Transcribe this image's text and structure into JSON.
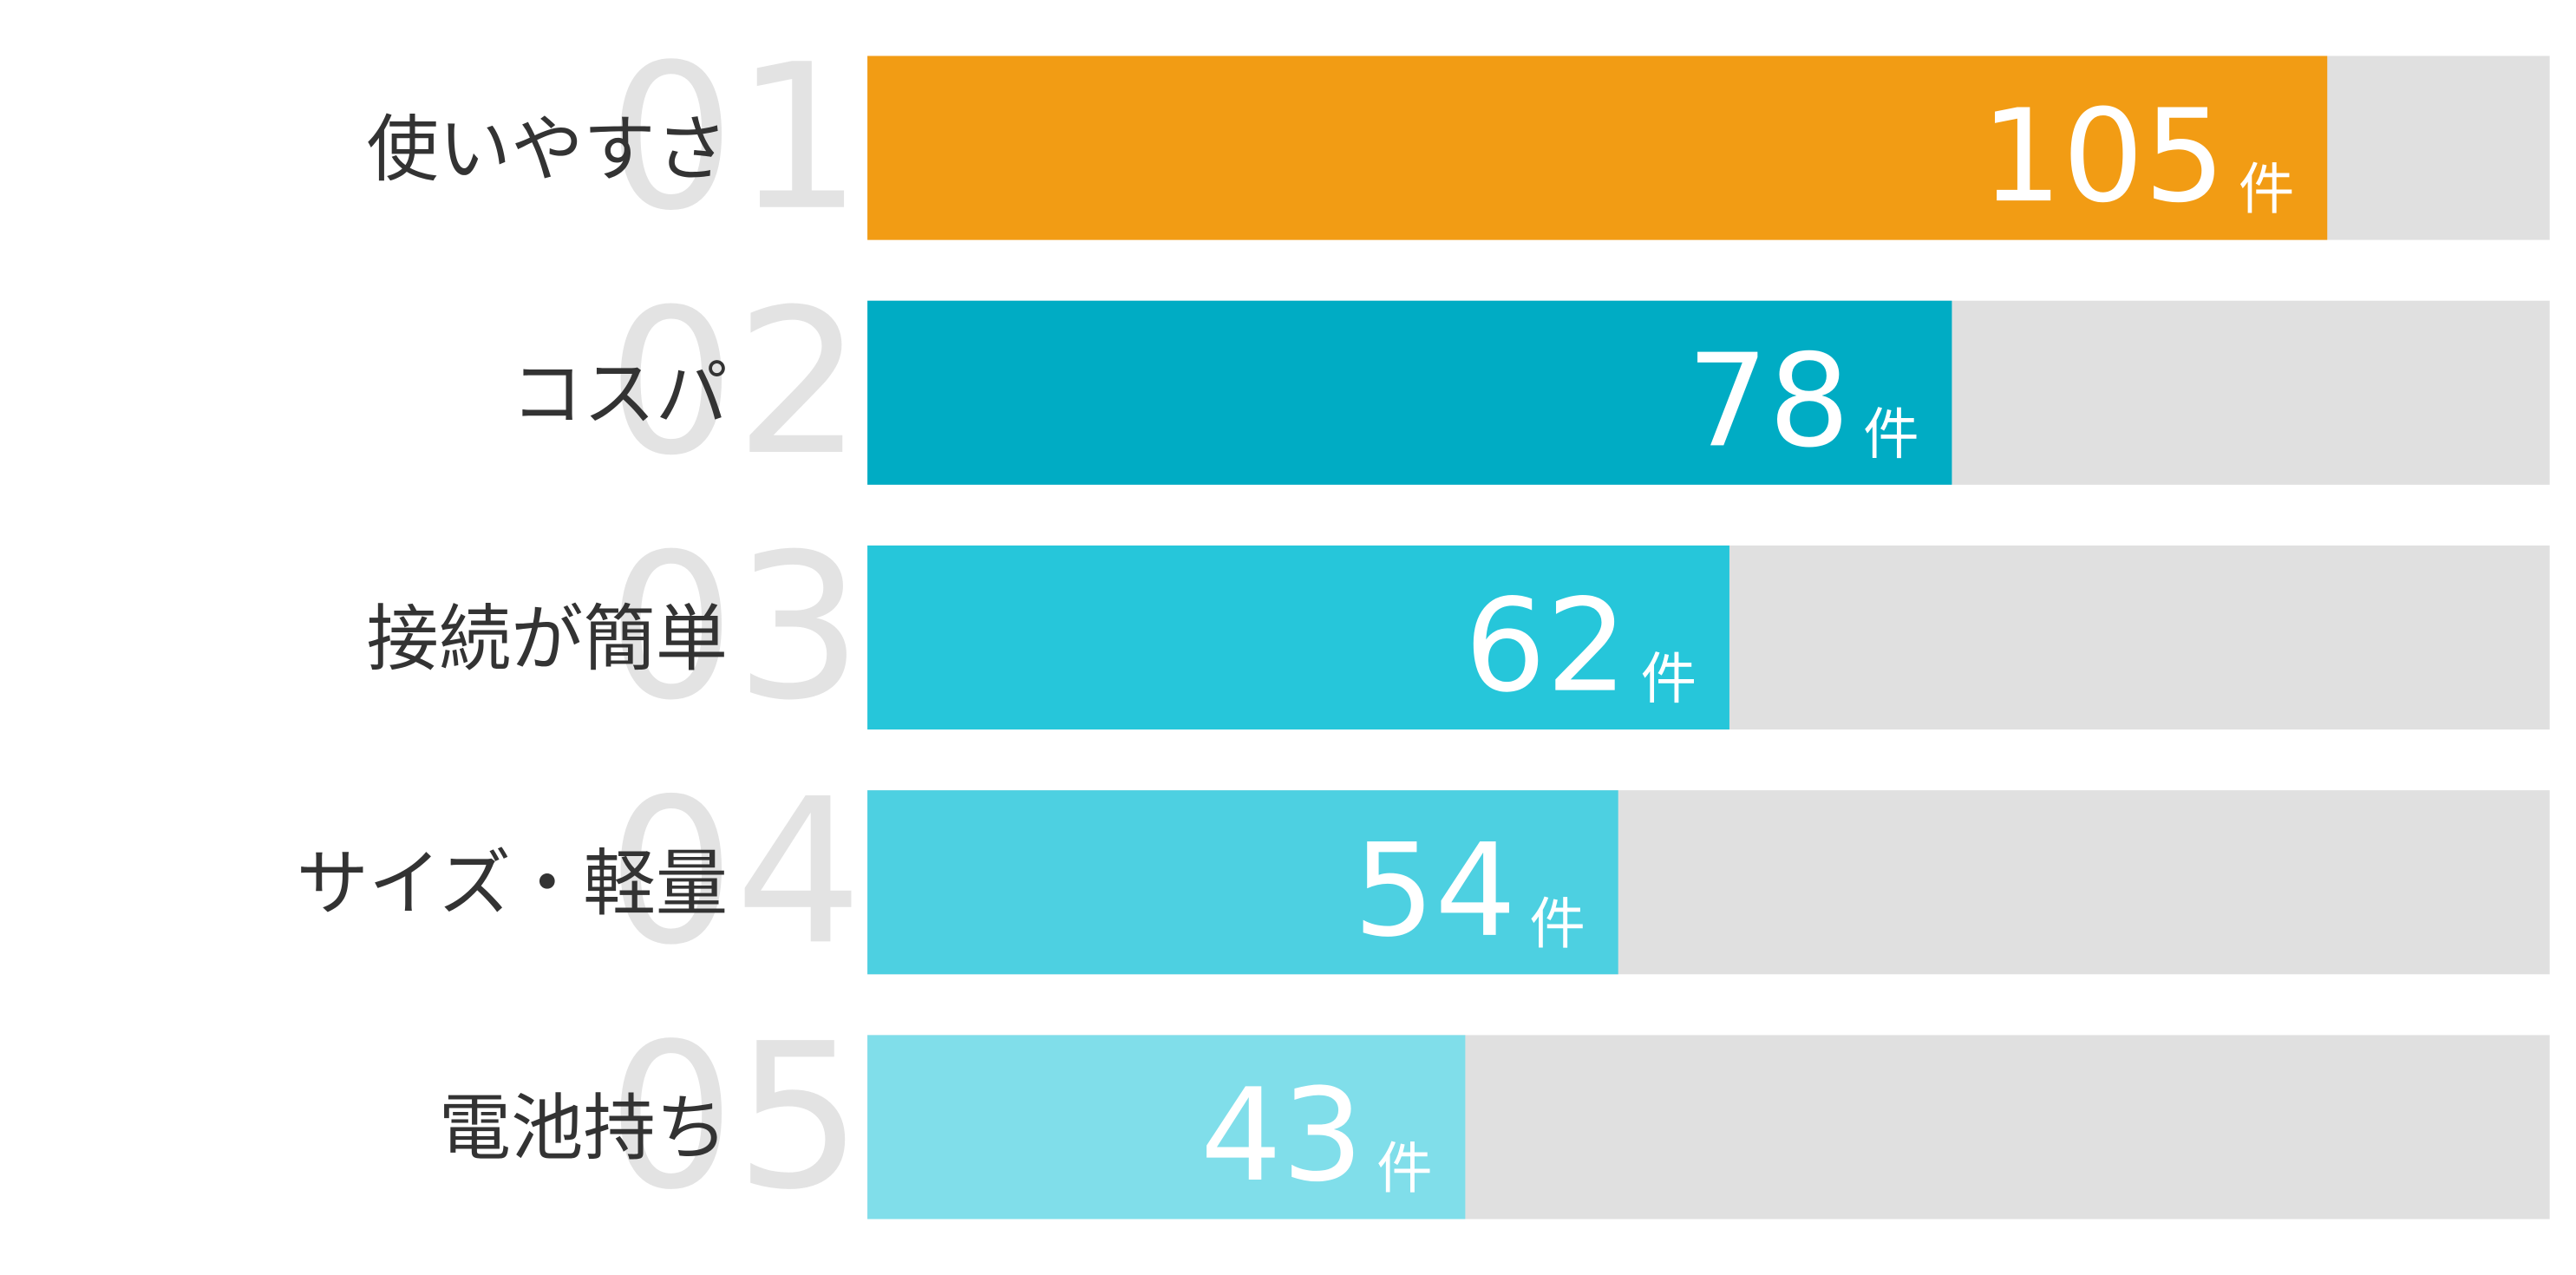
{
  "chart_data": {
    "type": "bar",
    "orientation": "horizontal",
    "ranks": [
      "01",
      "02",
      "03",
      "04",
      "05"
    ],
    "categories": [
      "使いやすさ",
      "コスパ",
      "接続が簡単",
      "サイズ・軽量",
      "電池持ち"
    ],
    "values": [
      105,
      78,
      62,
      54,
      43
    ],
    "unit": "件",
    "colors": [
      "#f29c14",
      "#00acc4",
      "#26c6da",
      "#4dd0e1",
      "#80deea"
    ],
    "track_color": "#e0e0e0",
    "xlim": [
      0,
      121
    ]
  }
}
